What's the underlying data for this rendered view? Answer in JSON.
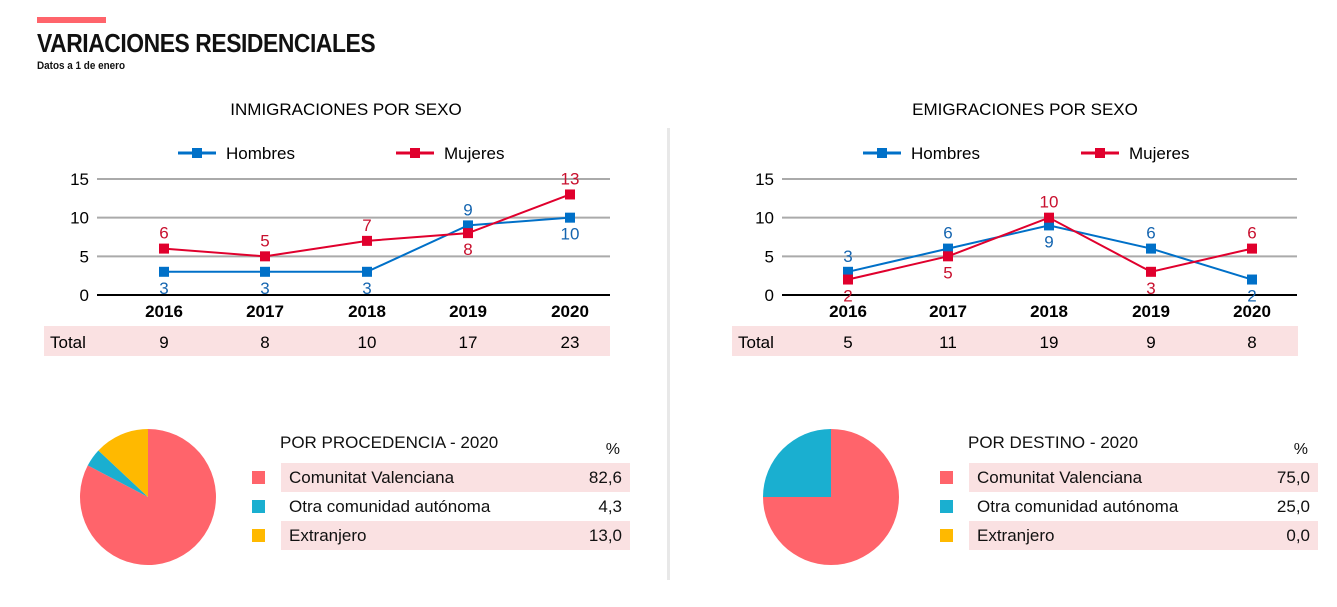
{
  "header": {
    "title": "VARIACIONES RESIDENCIALES",
    "subtitle": "Datos a 1 de enero"
  },
  "colors": {
    "hombres": "#0070c8",
    "mujeres": "#e0002d",
    "accent": "#ff646b",
    "cv": "#ff646b",
    "otra": "#1aafd0",
    "extr": "#ffb900",
    "shade": "#fae1e2"
  },
  "chart_data": [
    {
      "type": "line",
      "title": "INMIGRACIONES POR SEXO",
      "categories": [
        "2016",
        "2017",
        "2018",
        "2019",
        "2020"
      ],
      "ylim": [
        0,
        15
      ],
      "yticks": [
        "0",
        "5",
        "10",
        "15"
      ],
      "series": [
        {
          "name": "Hombres",
          "values": [
            3,
            3,
            3,
            9,
            10
          ]
        },
        {
          "name": "Mujeres",
          "values": [
            6,
            5,
            7,
            8,
            13
          ]
        }
      ],
      "total_label": "Total",
      "totals": [
        "9",
        "8",
        "10",
        "17",
        "23"
      ]
    },
    {
      "type": "line",
      "title": "EMIGRACIONES POR SEXO",
      "categories": [
        "2016",
        "2017",
        "2018",
        "2019",
        "2020"
      ],
      "ylim": [
        0,
        15
      ],
      "yticks": [
        "0",
        "5",
        "10",
        "15"
      ],
      "series": [
        {
          "name": "Hombres",
          "values": [
            3,
            6,
            9,
            6,
            2
          ]
        },
        {
          "name": "Mujeres",
          "values": [
            2,
            5,
            10,
            3,
            6
          ]
        }
      ],
      "total_label": "Total",
      "totals": [
        "5",
        "11",
        "19",
        "9",
        "8"
      ]
    },
    {
      "type": "pie",
      "title": "POR PROCEDENCIA - 2020",
      "unit": "%",
      "labels": [
        "Comunitat Valenciana",
        "Otra comunidad autónoma",
        "Extranjero"
      ],
      "values": [
        82.6,
        4.3,
        13.0
      ],
      "display": [
        "82,6",
        "4,3",
        "13,0"
      ]
    },
    {
      "type": "pie",
      "title": "POR DESTINO - 2020",
      "unit": "%",
      "labels": [
        "Comunitat Valenciana",
        "Otra comunidad autónoma",
        "Extranjero"
      ],
      "values": [
        75.0,
        25.0,
        0.0
      ],
      "display": [
        "75,0",
        "25,0",
        "0,0"
      ]
    }
  ]
}
